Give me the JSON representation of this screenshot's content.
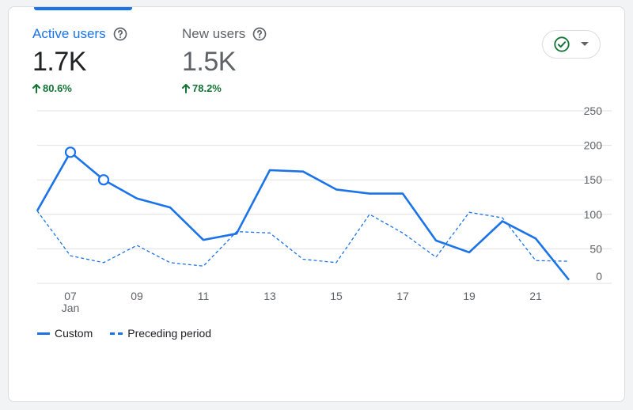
{
  "metrics": [
    {
      "label": "Active users",
      "value": "1.7K",
      "change": "80.6%",
      "color": "#1a73e8",
      "change_color": "#137333"
    },
    {
      "label": "New users",
      "value": "1.5K",
      "change": "78.2%",
      "color": "#5f6368",
      "change_color": "#137333"
    }
  ],
  "icons": {
    "help": "help-circle-icon",
    "compare": "check-circle-icon",
    "dropdown": "caret-down-icon",
    "change": "arrow-up-icon"
  },
  "colors": {
    "primary": "#1a73e8",
    "grid": "#e0e0e0",
    "axis_text": "#5f6368",
    "check": "#137333"
  },
  "chart_data": {
    "type": "line",
    "x_ticks": [
      {
        "label": "07",
        "sub": "Jan",
        "index": 1
      },
      {
        "label": "09",
        "index": 3
      },
      {
        "label": "11",
        "index": 5
      },
      {
        "label": "13",
        "index": 7
      },
      {
        "label": "15",
        "index": 9
      },
      {
        "label": "17",
        "index": 11
      },
      {
        "label": "19",
        "index": 13
      },
      {
        "label": "21",
        "index": 15
      }
    ],
    "y_ticks": [
      250,
      200,
      150,
      100,
      50,
      0
    ],
    "ylim": [
      0,
      250
    ],
    "series": [
      {
        "name": "Custom",
        "style": "solid",
        "values": [
          105,
          190,
          150,
          123,
          110,
          63,
          72,
          164,
          162,
          136,
          130,
          130,
          62,
          45,
          90,
          65,
          5
        ]
      },
      {
        "name": "Preceding period",
        "style": "dashed",
        "values": [
          105,
          40,
          30,
          55,
          30,
          25,
          75,
          73,
          35,
          30,
          100,
          73,
          38,
          103,
          95,
          33,
          32
        ]
      }
    ],
    "markers": [
      {
        "series": 0,
        "index": 1
      },
      {
        "series": 0,
        "index": 2
      }
    ]
  },
  "legend": [
    {
      "label": "Custom",
      "style": "solid"
    },
    {
      "label": "Preceding period",
      "style": "dashed"
    }
  ]
}
